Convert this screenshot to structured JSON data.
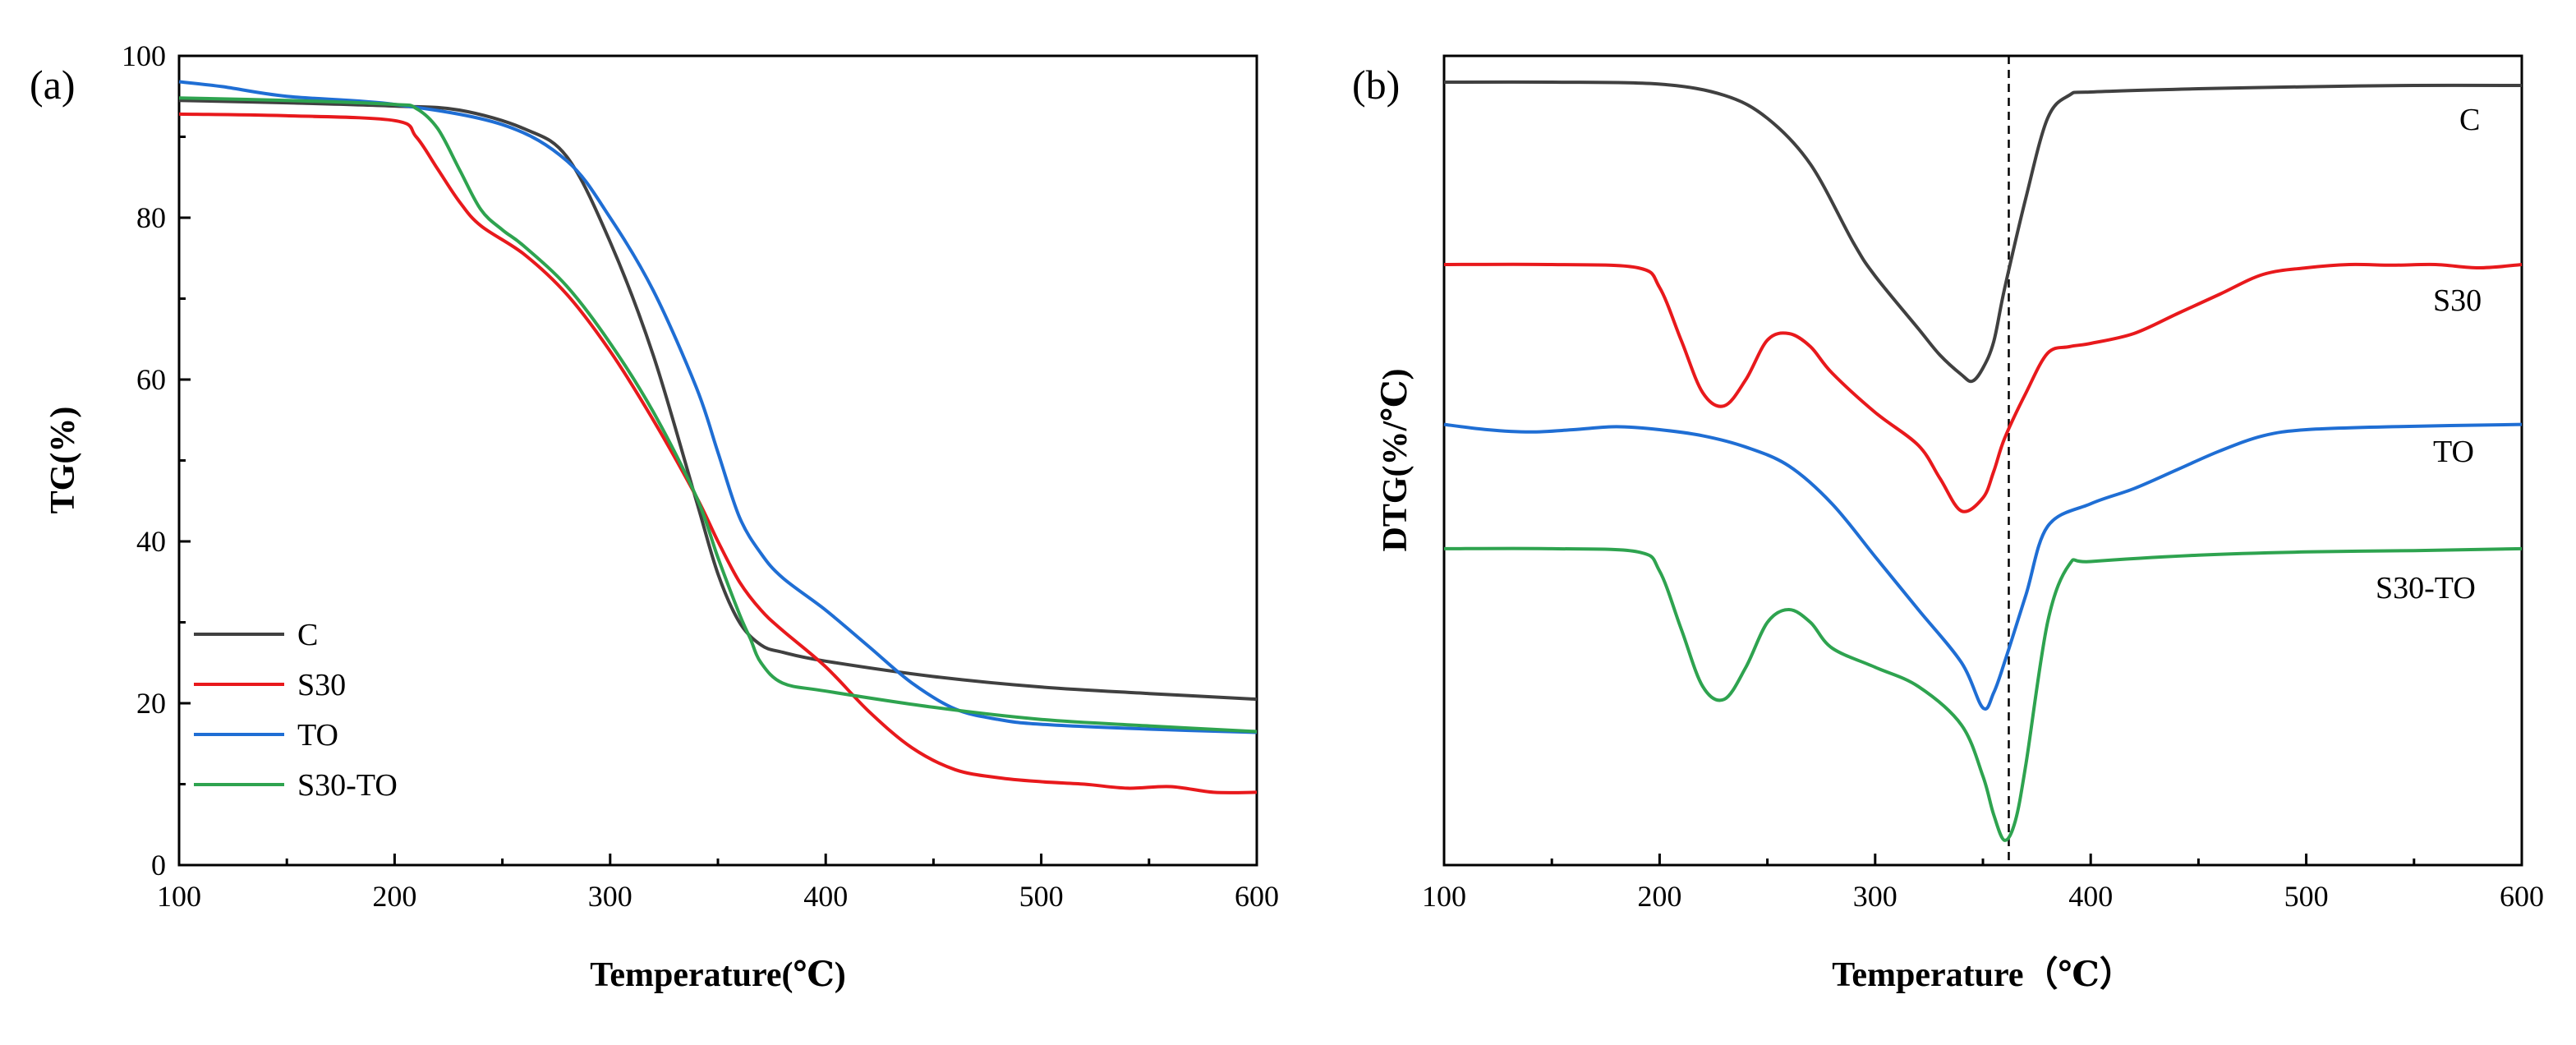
{
  "chart_data": [
    {
      "panel_label": "(a)",
      "type": "line",
      "xlabel": "Temperature(℃)",
      "ylabel": "TG(%)",
      "xlim": [
        100,
        600
      ],
      "ylim": [
        0,
        100
      ],
      "xticks": [
        100,
        200,
        300,
        400,
        500,
        600
      ],
      "yticks": [
        0,
        20,
        40,
        60,
        80,
        100
      ],
      "legend": "bottom-left",
      "series": [
        {
          "name": "C",
          "color": "#404040",
          "x": [
            100,
            150,
            200,
            230,
            260,
            280,
            300,
            320,
            340,
            350,
            360,
            370,
            380,
            400,
            450,
            500,
            550,
            600
          ],
          "y": [
            94.5,
            94.2,
            93.8,
            93.3,
            91.0,
            87.5,
            77.0,
            63.0,
            45.0,
            36.0,
            30.0,
            27.2,
            26.3,
            25.2,
            23.3,
            22.0,
            21.2,
            20.5
          ]
        },
        {
          "name": "S30",
          "color": "#e8191c",
          "x": [
            100,
            150,
            200,
            210,
            220,
            230,
            240,
            260,
            280,
            300,
            320,
            340,
            350,
            360,
            370,
            380,
            400,
            420,
            440,
            460,
            480,
            500,
            520,
            540,
            560,
            580,
            600
          ],
          "y": [
            92.8,
            92.6,
            92.0,
            90.0,
            86.0,
            82.0,
            79.0,
            75.5,
            70.5,
            63.5,
            55.0,
            45.5,
            40.0,
            35.0,
            31.5,
            29.0,
            24.5,
            19.0,
            14.5,
            11.8,
            10.8,
            10.3,
            10.0,
            9.5,
            9.7,
            9.0,
            9.0
          ]
        },
        {
          "name": "TO",
          "color": "#1f6ed4",
          "x": [
            100,
            120,
            150,
            200,
            250,
            280,
            300,
            320,
            340,
            350,
            360,
            370,
            380,
            400,
            420,
            440,
            460,
            480,
            500,
            550,
            600
          ],
          "y": [
            96.8,
            96.2,
            95.0,
            94.0,
            91.5,
            87.0,
            80.0,
            71.0,
            59.0,
            51.0,
            43.0,
            38.5,
            35.5,
            31.5,
            27.0,
            22.5,
            19.3,
            18.0,
            17.4,
            16.8,
            16.4
          ]
        },
        {
          "name": "S30-TO",
          "color": "#2ea34f",
          "x": [
            100,
            150,
            200,
            210,
            220,
            230,
            240,
            250,
            260,
            280,
            300,
            320,
            340,
            350,
            360,
            365,
            370,
            380,
            400,
            450,
            500,
            550,
            600
          ],
          "y": [
            94.8,
            94.5,
            94.0,
            93.5,
            91.0,
            86.0,
            81.0,
            78.5,
            76.5,
            71.5,
            64.5,
            56.0,
            45.5,
            38.0,
            31.0,
            28.0,
            25.0,
            22.5,
            21.5,
            19.5,
            18.0,
            17.2,
            16.5
          ]
        }
      ]
    },
    {
      "panel_label": "(b)",
      "type": "line",
      "xlabel": "Temperature（℃）",
      "ylabel": "DTG(%/℃)",
      "xlim": [
        100,
        600
      ],
      "xticks": [
        100,
        200,
        300,
        400,
        500,
        600
      ],
      "y_units": "arbitrary (curves vertically offset)",
      "vertical_reference_line_x": 362,
      "series": [
        {
          "name": "C",
          "color": "#404040",
          "x": [
            100,
            150,
            200,
            230,
            250,
            270,
            290,
            300,
            320,
            330,
            340,
            345,
            350,
            355,
            360,
            370,
            380,
            390,
            400,
            450,
            500,
            550,
            600
          ],
          "y": [
            0.05,
            0.05,
            0.08,
            0.25,
            0.6,
            1.3,
            2.5,
            3.0,
            3.8,
            4.2,
            4.5,
            4.6,
            4.4,
            4.0,
            3.2,
            1.8,
            0.6,
            0.25,
            0.2,
            0.15,
            0.12,
            0.1,
            0.1
          ]
        },
        {
          "name": "S30",
          "color": "#e8191c",
          "x": [
            100,
            150,
            190,
            200,
            210,
            220,
            230,
            240,
            250,
            260,
            270,
            280,
            300,
            320,
            330,
            340,
            350,
            355,
            360,
            370,
            380,
            390,
            400,
            420,
            440,
            460,
            480,
            500,
            520,
            540,
            560,
            580,
            600
          ],
          "y": [
            0.05,
            0.05,
            0.1,
            0.4,
            1.2,
            2.0,
            2.2,
            1.8,
            1.2,
            1.1,
            1.3,
            1.7,
            2.3,
            2.8,
            3.3,
            3.8,
            3.6,
            3.2,
            2.7,
            2.0,
            1.4,
            1.3,
            1.25,
            1.1,
            0.8,
            0.5,
            0.2,
            0.1,
            0.05,
            0.06,
            0.05,
            0.1,
            0.05
          ]
        },
        {
          "name": "TO",
          "color": "#1f6ed4",
          "x": [
            100,
            120,
            140,
            160,
            180,
            200,
            220,
            240,
            260,
            280,
            300,
            320,
            340,
            350,
            355,
            360,
            370,
            380,
            400,
            420,
            440,
            460,
            480,
            500,
            540,
            600
          ],
          "y": [
            0.05,
            0.12,
            0.15,
            0.12,
            0.08,
            0.12,
            0.2,
            0.35,
            0.6,
            1.1,
            1.8,
            2.5,
            3.2,
            3.8,
            3.6,
            3.2,
            2.3,
            1.4,
            1.1,
            0.9,
            0.65,
            0.4,
            0.2,
            0.12,
            0.08,
            0.05
          ]
        },
        {
          "name": "S30-TO",
          "color": "#2ea34f",
          "x": [
            100,
            150,
            190,
            200,
            210,
            220,
            230,
            240,
            250,
            260,
            270,
            280,
            300,
            320,
            340,
            350,
            355,
            360,
            365,
            370,
            380,
            390,
            400,
            450,
            500,
            550,
            600
          ],
          "y": [
            0.05,
            0.05,
            0.1,
            0.4,
            1.3,
            2.2,
            2.4,
            1.9,
            1.2,
            1.0,
            1.2,
            1.6,
            1.9,
            2.2,
            2.8,
            3.6,
            4.2,
            4.6,
            4.3,
            3.4,
            1.2,
            0.3,
            0.25,
            0.15,
            0.1,
            0.08,
            0.05
          ]
        }
      ]
    }
  ]
}
